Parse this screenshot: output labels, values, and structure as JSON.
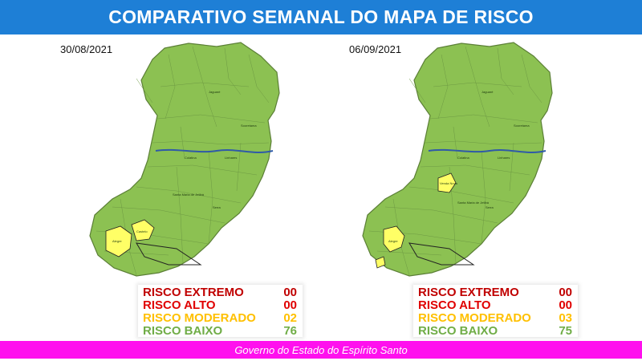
{
  "header": {
    "title": "COMPARATIVO SEMANAL DO MAPA DE RISCO"
  },
  "colors": {
    "header_bg": "#1e7fd6",
    "footer_bg": "#ff10ee",
    "risco_extremo": "#c00000",
    "risco_alto": "#e00000",
    "risco_moderado": "#ffc000",
    "risco_baixo": "#70ad47",
    "map_green": "#8cc152",
    "map_yellow": "#ffff66",
    "river": "#2f5aa8"
  },
  "maps": [
    {
      "date": "30/08/2021",
      "labels": {
        "jaguare": "Jaguaré",
        "sooretama": "Sooretama",
        "linhares": "Linhares",
        "colatina": "Colatina",
        "sm_jetiba": "Santa Maria de Jetibá",
        "serra": "Serra",
        "alegre": "Alegre",
        "castelo": "Castelo"
      },
      "legend": [
        {
          "label": "RISCO EXTREMO",
          "value": "00",
          "color_key": "risco_extremo"
        },
        {
          "label": "RISCO ALTO",
          "value": "00",
          "color_key": "risco_alto"
        },
        {
          "label": "RISCO MODERADO",
          "value": "02",
          "color_key": "risco_moderado"
        },
        {
          "label": "RISCO BAIXO",
          "value": "76",
          "color_key": "risco_baixo"
        }
      ]
    },
    {
      "date": "06/09/2021",
      "labels": {
        "jaguare": "Jaguaré",
        "sooretama": "Sooretama",
        "linhares": "Linhares",
        "colatina": "Colatina",
        "sm_jetiba": "Santa Maria de Jetibá",
        "serra": "Serra",
        "alegre": "Alegre",
        "venda_nova": "Venda Nova"
      },
      "legend": [
        {
          "label": "RISCO EXTREMO",
          "value": "00",
          "color_key": "risco_extremo"
        },
        {
          "label": "RISCO ALTO",
          "value": "00",
          "color_key": "risco_alto"
        },
        {
          "label": "RISCO MODERADO",
          "value": "03",
          "color_key": "risco_moderado"
        },
        {
          "label": "RISCO BAIXO",
          "value": "75",
          "color_key": "risco_baixo"
        }
      ]
    }
  ],
  "footer": {
    "text": "Governo do Estado do Espírito Santo"
  }
}
